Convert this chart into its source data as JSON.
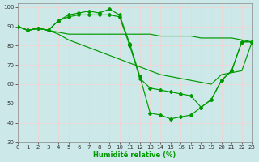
{
  "xlabel": "Humidité relative (%)",
  "bg_color": "#cce8e8",
  "grid_color": "#aaddcc",
  "line_color": "#009900",
  "xlim": [
    0,
    23
  ],
  "ylim": [
    30,
    102
  ],
  "xticks": [
    0,
    1,
    2,
    3,
    4,
    5,
    6,
    7,
    8,
    9,
    10,
    11,
    12,
    13,
    14,
    15,
    16,
    17,
    18,
    19,
    20,
    21,
    22,
    23
  ],
  "yticks": [
    30,
    40,
    50,
    60,
    70,
    80,
    90,
    100
  ],
  "curve1_x": [
    0,
    1,
    2,
    3,
    4,
    5,
    6,
    7,
    8,
    9,
    10,
    11,
    12,
    13,
    14,
    15,
    16,
    17,
    18,
    19,
    20,
    21,
    22,
    23
  ],
  "curve1_y": [
    90,
    88,
    89,
    88,
    93,
    96,
    97,
    98,
    97,
    99,
    96,
    81,
    64,
    45,
    44,
    42,
    43,
    44,
    48,
    52,
    62,
    67,
    82,
    82
  ],
  "curve2_x": [
    0,
    1,
    2,
    3,
    4,
    5,
    6,
    7,
    8,
    9,
    10,
    11,
    12,
    13,
    14,
    15,
    16,
    17,
    18,
    19,
    20,
    21,
    22,
    23
  ],
  "curve2_y": [
    90,
    88,
    89,
    88,
    93,
    95,
    96,
    96,
    96,
    96,
    95,
    80,
    63,
    58,
    57,
    56,
    55,
    54,
    48,
    52,
    62,
    67,
    82,
    82
  ],
  "curve3_x": [
    0,
    1,
    2,
    3,
    4,
    5,
    6,
    7,
    8,
    9,
    10,
    11,
    12,
    13,
    14,
    15,
    16,
    17,
    18,
    19,
    20,
    21,
    22,
    23
  ],
  "curve3_y": [
    90,
    88,
    89,
    88,
    87,
    86,
    86,
    86,
    86,
    86,
    86,
    86,
    86,
    86,
    85,
    85,
    85,
    85,
    84,
    84,
    84,
    84,
    83,
    82
  ],
  "curve4_x": [
    0,
    1,
    2,
    3,
    4,
    5,
    6,
    7,
    8,
    9,
    10,
    11,
    12,
    13,
    14,
    15,
    16,
    17,
    18,
    19,
    20,
    21,
    22,
    23
  ],
  "curve4_y": [
    90,
    88,
    89,
    88,
    86,
    83,
    81,
    79,
    77,
    75,
    73,
    71,
    69,
    67,
    65,
    64,
    63,
    62,
    61,
    60,
    65,
    66,
    67,
    82
  ]
}
